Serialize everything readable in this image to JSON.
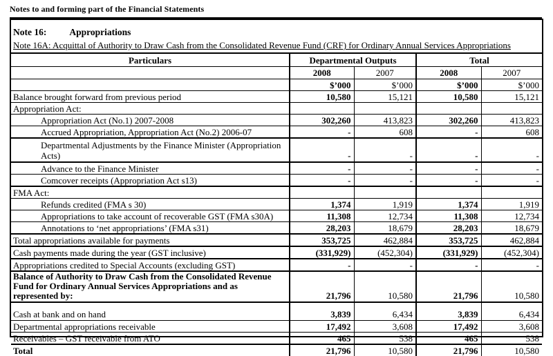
{
  "page_title": "Notes to and forming part of the Financial Statements",
  "colors": {
    "text": "#000000",
    "background": "#ffffff",
    "border": "#000000"
  },
  "note": {
    "number": "Note 16:",
    "title": "Appropriations",
    "subtitle": "Note 16A: Acquittal of Authority to Draw Cash from the Consolidated Revenue Fund (CRF) for Ordinary Annual Services Appropriations"
  },
  "table": {
    "header": {
      "particulars": "Particulars",
      "groups": [
        "Departmental Outputs",
        "Total"
      ],
      "years": [
        "2008",
        "2007",
        "2008",
        "2007"
      ],
      "units": [
        "$’000",
        "$’000",
        "$’000",
        "$’000"
      ]
    },
    "rows": [
      {
        "label": "Balance brought forward from previous period",
        "values": [
          "10,580",
          "15,121",
          "10,580",
          "15,121"
        ]
      },
      {
        "label": "Appropriation Act:",
        "values": [
          "",
          "",
          "",
          ""
        ]
      },
      {
        "label": "Appropriation Act (No.1) 2007-2008",
        "indent": true,
        "values": [
          "302,260",
          "413,823",
          "302,260",
          "413,823"
        ]
      },
      {
        "label": "Accrued Appropriation, Appropriation Act (No.2) 2006-07",
        "indent": true,
        "values": [
          "-",
          "608",
          "-",
          "608"
        ]
      },
      {
        "label": "Departmental Adjustments by the Finance Minister (Appropriation\nActs)",
        "indent": true,
        "lines": 2,
        "thickTop": true,
        "valign": "bottom",
        "values": [
          "-",
          "-",
          "-",
          "-"
        ]
      },
      {
        "label": "Advance to the Finance Minister",
        "indent": true,
        "thickTop": true,
        "values": [
          "-",
          "-",
          "-",
          "-"
        ]
      },
      {
        "label": "Comcover receipts (Appropriation Act s13)",
        "indent": true,
        "values": [
          "-",
          "-",
          "-",
          "-"
        ]
      },
      {
        "label": "FMA Act:",
        "thickTop": true,
        "values": [
          "",
          "",
          "",
          ""
        ]
      },
      {
        "label": "Refunds credited (FMA s 30)",
        "indent": true,
        "values": [
          "1,374",
          "1,919",
          "1,374",
          "1,919"
        ]
      },
      {
        "label": "Appropriations to take account of recoverable GST  (FMA s30A)",
        "indent": true,
        "values": [
          "11,308",
          "12,734",
          "11,308",
          "12,734"
        ]
      },
      {
        "label": "Annotations to ‘net appropriations’ (FMA s31)",
        "indent": true,
        "values": [
          "28,203",
          "18,679",
          "28,203",
          "18,679"
        ]
      },
      {
        "label": "Total appropriations available for payments",
        "thickTop": true,
        "values": [
          "353,725",
          "462,884",
          "353,725",
          "462,884"
        ]
      },
      {
        "label": "Cash payments made during the year (GST inclusive)",
        "thickTop": true,
        "values": [
          "(331,929)",
          "(452,304)",
          "(331,929)",
          "(452,304)"
        ]
      },
      {
        "label": "Appropriations credited to Special Accounts (excluding GST)",
        "thickTop": true,
        "values": [
          "-",
          "-",
          "-",
          "-"
        ]
      },
      {
        "label": "Balance of Authority to Draw Cash from the Consolidated Revenue\nFund for Ordinary Annual Services Appropriations and as\nrepresented by:",
        "bold": true,
        "thickTop": true,
        "lines": 3,
        "valign": "bottom",
        "values": [
          "21,796",
          "10,580",
          "21,796",
          "10,580"
        ]
      },
      {
        "label": "Cash at bank and on hand",
        "thickTop": true,
        "tall": true,
        "valign": "bottom",
        "values": [
          "3,839",
          "6,434",
          "3,839",
          "6,434"
        ]
      },
      {
        "label": "Departmental appropriations receivable",
        "values": [
          "17,492",
          "3,608",
          "17,492",
          "3,608"
        ]
      },
      {
        "label": "Receivables – GST receivable from ATO",
        "values": [
          "465",
          "538",
          "465",
          "538"
        ]
      },
      {
        "label": "Total",
        "bold": true,
        "thickTop": true,
        "values": [
          "21,796",
          "10,580",
          "21,796",
          "10,580"
        ]
      }
    ]
  }
}
